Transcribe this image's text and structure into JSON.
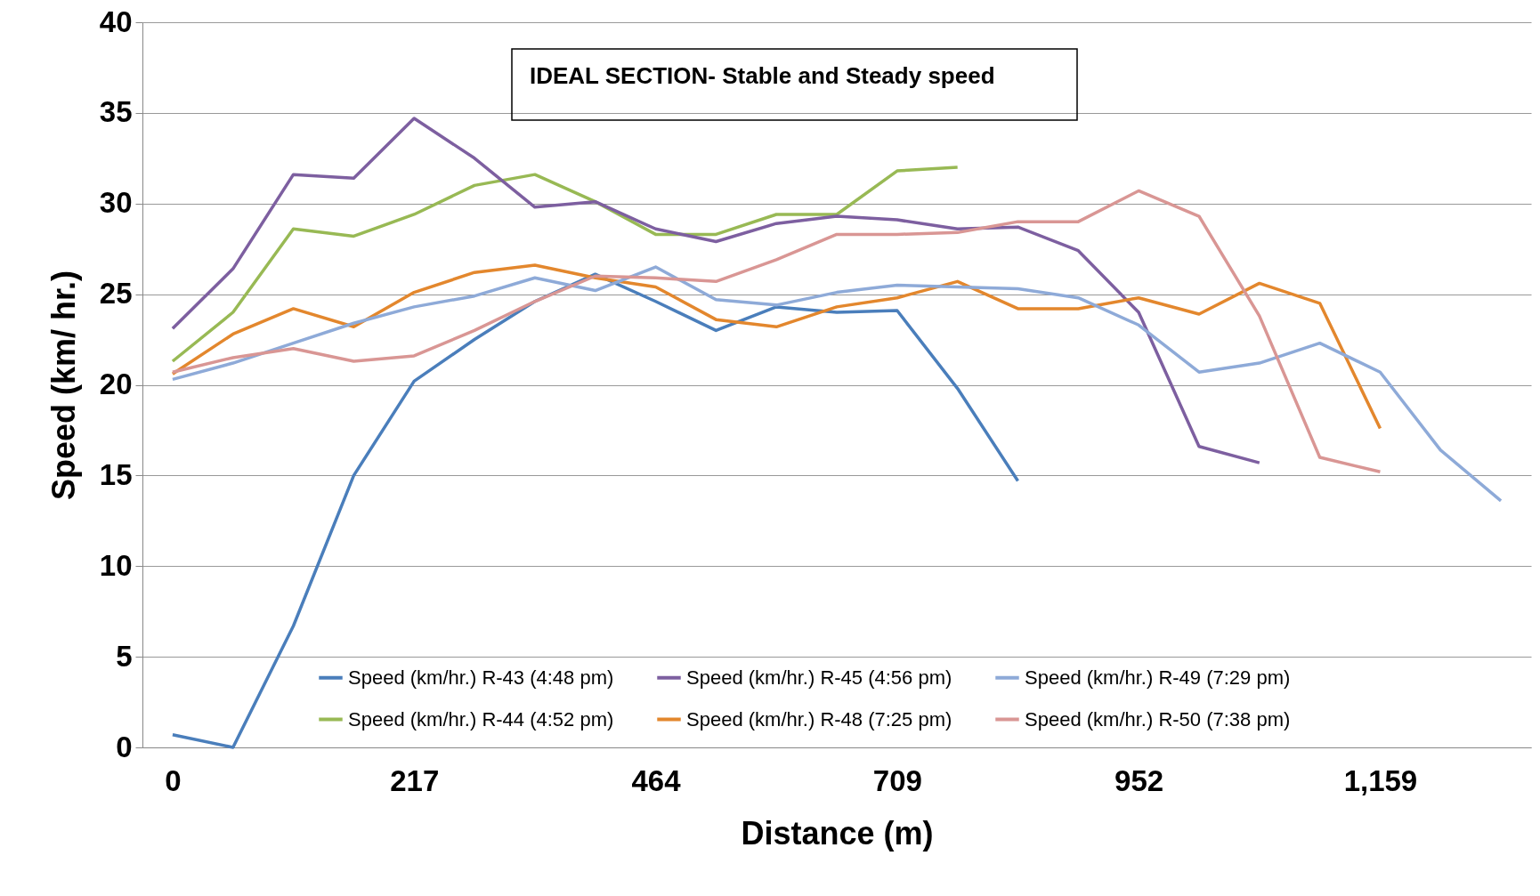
{
  "chart_data": {
    "type": "line",
    "xlabel": "Distance (m)",
    "ylabel": "Speed (km/ hr.)",
    "annotations": [
      "IDEAL SECTION- Stable and Steady speed"
    ],
    "categories": [
      "0",
      null,
      null,
      null,
      "217",
      null,
      null,
      null,
      "464",
      null,
      null,
      null,
      "709",
      null,
      null,
      null,
      "952",
      null,
      null,
      null,
      "1,159",
      null,
      null
    ],
    "ylim": [
      0,
      40
    ],
    "yticks": [
      0,
      5,
      10,
      15,
      20,
      25,
      30,
      35,
      40
    ],
    "grid": "y",
    "legend": "bottom",
    "series": [
      {
        "name": "Speed (km/hr.) R-43 (4:48 pm)",
        "color": "#4a7ebb",
        "values": [
          0.7,
          0,
          6.7,
          15,
          20.2,
          22.5,
          24.6,
          26.1,
          24.6,
          23.0,
          24.3,
          24.0,
          24.1,
          19.8,
          14.7,
          null,
          null,
          null,
          null,
          null,
          null,
          null,
          null
        ]
      },
      {
        "name": "Speed (km/hr.) R-44 (4:52 pm)",
        "color": "#98b954",
        "values": [
          21.3,
          24.0,
          28.6,
          28.2,
          29.4,
          31.0,
          31.6,
          30.1,
          28.3,
          28.3,
          29.4,
          29.4,
          31.8,
          32.0,
          null,
          null,
          null,
          null,
          null,
          null,
          null,
          null,
          null
        ]
      },
      {
        "name": "Speed (km/hr.) R-45 (4:56 pm)",
        "color": "#7d5fa0",
        "values": [
          23.1,
          26.4,
          31.6,
          31.4,
          34.7,
          32.5,
          29.8,
          30.1,
          28.6,
          27.9,
          28.9,
          29.3,
          29.1,
          28.6,
          28.7,
          27.4,
          24.0,
          16.6,
          15.7,
          null,
          null,
          null,
          null
        ]
      },
      {
        "name": "Speed (km/hr.) R-48 (7:25 pm)",
        "color": "#e3872d",
        "values": [
          20.6,
          22.8,
          24.2,
          23.2,
          25.1,
          26.2,
          26.6,
          25.9,
          25.4,
          23.6,
          23.2,
          24.3,
          24.8,
          25.7,
          24.2,
          24.2,
          24.8,
          23.9,
          25.6,
          24.5,
          17.6,
          null,
          null
        ]
      },
      {
        "name": "Speed (km/hr.) R-49 (7:29 pm)",
        "color": "#8eaad8",
        "values": [
          20.3,
          21.2,
          22.3,
          23.4,
          24.3,
          24.9,
          25.9,
          25.2,
          26.5,
          24.7,
          24.4,
          25.1,
          25.5,
          25.4,
          25.3,
          24.8,
          23.3,
          20.7,
          21.2,
          22.3,
          20.7,
          16.4,
          13.6
        ]
      },
      {
        "name": "Speed (km/hr.) R-50 (7:38 pm)",
        "color": "#d99694",
        "values": [
          20.7,
          21.5,
          22.0,
          21.3,
          21.6,
          23.0,
          24.6,
          26.0,
          25.9,
          25.7,
          26.9,
          28.3,
          28.3,
          28.4,
          29.0,
          29.0,
          30.7,
          29.3,
          23.8,
          16.0,
          15.2,
          null,
          null
        ]
      }
    ]
  }
}
